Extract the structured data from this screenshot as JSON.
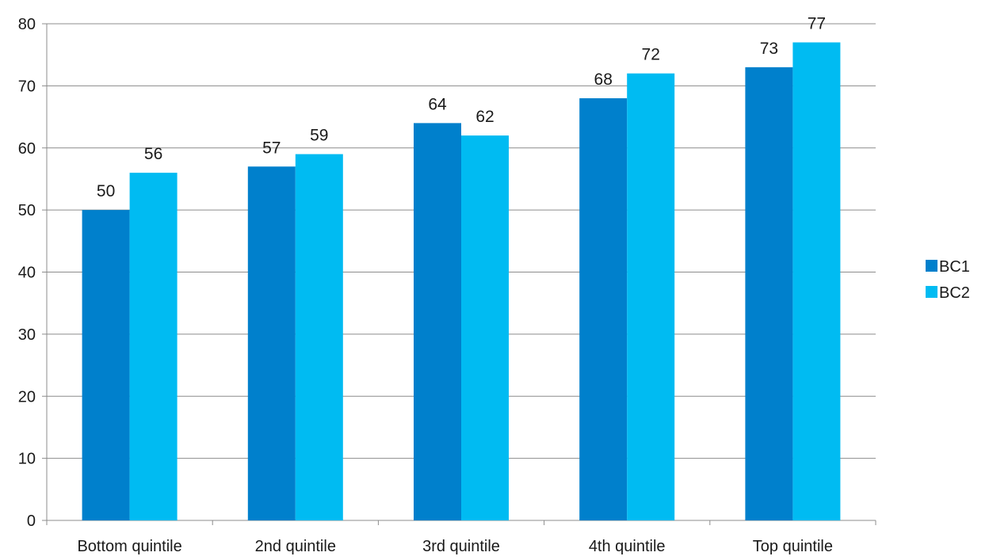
{
  "chart_data": {
    "type": "bar",
    "title": "",
    "xlabel": "",
    "ylabel": "",
    "categories": [
      "Bottom quintile",
      "2nd quintile",
      "3rd quintile",
      "4th quintile",
      "Top quintile"
    ],
    "series": [
      {
        "name": "BC1",
        "color": "#0080cc",
        "values": [
          50,
          57,
          64,
          68,
          73
        ],
        "labels": [
          "50",
          "57",
          "64",
          "68",
          "73"
        ]
      },
      {
        "name": "BC2",
        "color": "#00bbf2",
        "values": [
          56,
          59,
          62,
          72,
          77
        ],
        "labels": [
          "56",
          "59",
          "62",
          "72",
          "77"
        ]
      }
    ],
    "ylim": [
      0,
      80
    ],
    "yticks": [
      0,
      10,
      20,
      30,
      40,
      50,
      60,
      70,
      80
    ],
    "ytick_labels": [
      "0",
      "10",
      "20",
      "30",
      "40",
      "50",
      "60",
      "70",
      "80"
    ],
    "grid": true,
    "gridline_color": "#8c8c8c",
    "legend": {
      "position": "right",
      "entries": [
        "BC1",
        "BC2"
      ]
    },
    "data_labels": true
  }
}
